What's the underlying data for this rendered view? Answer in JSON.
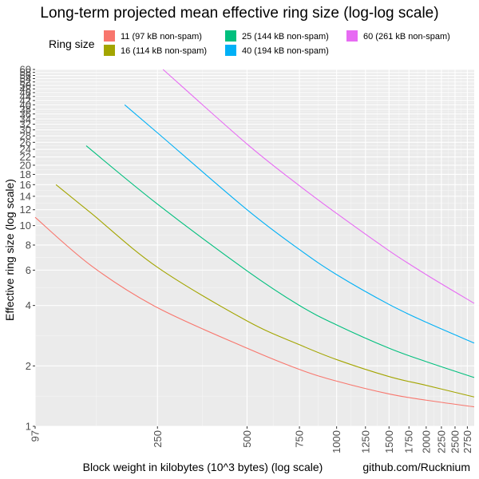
{
  "chart_data": {
    "type": "line",
    "title": "Long-term projected mean effective ring size (log-log scale)",
    "xlabel": "Block weight in kilobytes (10^3 bytes) (log scale)",
    "ylabel": "Effective ring size (log scale)",
    "caption": "github.com/Rucknium",
    "x_scale": "log",
    "y_scale": "log",
    "xlim": [
      97,
      2900
    ],
    "ylim": [
      1,
      60
    ],
    "grid": true,
    "legend": {
      "title": "Ring size",
      "position": "top",
      "entries": [
        {
          "label": "11 (97 kB non-spam)",
          "color": "#F8766D"
        },
        {
          "label": "16 (114 kB non-spam)",
          "color": "#A3A500"
        },
        {
          "label": "25 (144 kB non-spam)",
          "color": "#00BF7D"
        },
        {
          "label": "40 (194 kB non-spam)",
          "color": "#00B0F6"
        },
        {
          "label": "60 (261 kB non-spam)",
          "color": "#E76BF3"
        }
      ]
    },
    "x_ticks": [
      "97",
      "250",
      "500",
      "750",
      "1000",
      "1250",
      "1500",
      "1750",
      "2000",
      "2250",
      "2500",
      "2750"
    ],
    "y_ticks": [
      "1",
      "2",
      "4",
      "6",
      "8",
      "10",
      "12",
      "14",
      "16",
      "18",
      "20",
      "22",
      "24",
      "26",
      "28",
      "30",
      "32",
      "34",
      "36",
      "38",
      "40",
      "42",
      "44",
      "46",
      "48",
      "50",
      "52",
      "54",
      "56",
      "58",
      "60"
    ],
    "series": [
      {
        "name": "11 (97 kB non-spam)",
        "color": "#F8766D",
        "x": [
          97,
          150,
          250,
          500,
          750,
          1000,
          1500,
          2000,
          2900
        ],
        "y": [
          11,
          6.3,
          3.9,
          2.45,
          1.92,
          1.68,
          1.45,
          1.35,
          1.25
        ]
      },
      {
        "name": "16 (114 kB non-spam)",
        "color": "#A3A500",
        "x": [
          114,
          150,
          250,
          500,
          750,
          1000,
          1500,
          2000,
          2900
        ],
        "y": [
          16,
          11.5,
          6.2,
          3.35,
          2.55,
          2.15,
          1.77,
          1.6,
          1.4
        ]
      },
      {
        "name": "25 (144 kB non-spam)",
        "color": "#00BF7D",
        "x": [
          144,
          250,
          500,
          750,
          1000,
          1500,
          2000,
          2900
        ],
        "y": [
          25,
          12.8,
          5.95,
          4.0,
          3.2,
          2.45,
          2.1,
          1.75
        ]
      },
      {
        "name": "40 (194 kB non-spam)",
        "color": "#00B0F6",
        "x": [
          194,
          250,
          500,
          750,
          1000,
          1500,
          2000,
          2900
        ],
        "y": [
          40,
          29,
          12.0,
          7.6,
          5.7,
          4.05,
          3.3,
          2.6
        ]
      },
      {
        "name": "60 (261 kB non-spam)",
        "color": "#E76BF3",
        "x": [
          261,
          500,
          750,
          1000,
          1500,
          2000,
          2900
        ],
        "y": [
          60,
          25.5,
          15.8,
          11.5,
          7.5,
          5.7,
          4.1
        ]
      }
    ]
  }
}
